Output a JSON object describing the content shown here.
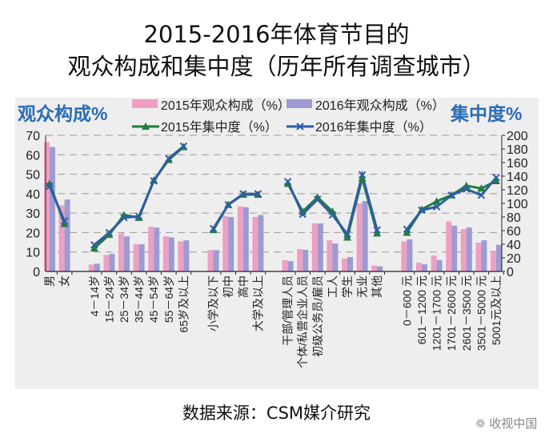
{
  "title_line1": "2015-2016年体育节目的",
  "title_line2": "观众构成和集中度（历年所有调查城市）",
  "source": "数据来源：CSM媒介研究",
  "watermark": "收视中国",
  "chart_data": {
    "type": "bar+line",
    "left_axis_title": "观众构成%",
    "right_axis_title": "集中度%",
    "ylim_left": [
      0,
      70
    ],
    "left_ticks": [
      0,
      10,
      20,
      30,
      40,
      50,
      60,
      70
    ],
    "ylim_right": [
      0,
      200
    ],
    "right_ticks": [
      0,
      20,
      40,
      60,
      80,
      100,
      120,
      140,
      160,
      180,
      200
    ],
    "grid": true,
    "legend": [
      {
        "name": "2015年观众构成（%）",
        "color": "#ee9fc4",
        "kind": "bar"
      },
      {
        "name": "2016年观众构成（%）",
        "color": "#9c9bd2",
        "kind": "bar"
      },
      {
        "name": "2015年集中度（%）",
        "color": "#1f7d3f",
        "kind": "line"
      },
      {
        "name": "2016年集中度（%）",
        "color": "#2f5da6",
        "kind": "line"
      }
    ],
    "groups": [
      {
        "categories": [
          "男",
          "女"
        ],
        "bar2015": [
          66.5,
          34
        ],
        "bar2016": [
          64,
          37
        ],
        "conc2015": [
          129,
          70
        ],
        "conc2016": [
          125,
          74
        ]
      },
      {
        "categories": [
          "4－14岁",
          "15－24岁",
          "25－34岁",
          "35－44岁",
          "45－54岁",
          "55－64岁",
          "65岁及以上"
        ],
        "bar2015": [
          3.5,
          8.5,
          19.5,
          14,
          23,
          18,
          15.5
        ],
        "bar2016": [
          4,
          9,
          18,
          14,
          22.5,
          17.5,
          16
        ],
        "conc2015": [
          34,
          54,
          83,
          79,
          134,
          164,
          183
        ],
        "conc2016": [
          39,
          57,
          79,
          81,
          133,
          166,
          184
        ]
      },
      {
        "categories": [
          "小学及以下",
          "初中",
          "高中",
          "大学及以上"
        ],
        "bar2015": [
          11,
          28.5,
          33.5,
          28
        ],
        "bar2016": [
          11,
          28,
          33,
          29
        ],
        "conc2015": [
          61,
          98,
          113,
          113
        ],
        "conc2016": [
          63,
          98,
          114,
          114
        ]
      },
      {
        "categories": [
          "干部/管理人员",
          "个体/私营企业人员",
          "初级公务员/雇员",
          "工人",
          "学生",
          "无业",
          "其他"
        ],
        "bar2015": [
          5.8,
          11.5,
          24.7,
          16,
          6.6,
          35,
          3
        ],
        "bar2016": [
          5.3,
          11.1,
          24.7,
          14.4,
          7.4,
          36.2,
          2.6
        ],
        "conc2015": [
          129,
          88,
          109,
          88,
          50,
          137,
          56
        ],
        "conc2016": [
          132,
          84,
          106,
          83,
          55,
          142,
          61
        ]
      },
      {
        "categories": [
          "0－600 元",
          "601－1200 元",
          "1201－1700 元",
          "1701－2600 元",
          "2601－3500 元",
          "3501－5000 元",
          "5001元及以上"
        ],
        "bar2015": [
          15.5,
          4.5,
          8.2,
          25.7,
          21.8,
          14.8,
          10.7
        ],
        "bar2016": [
          16.5,
          3.7,
          5.8,
          23.5,
          22.6,
          16,
          13.7
        ],
        "conc2015": [
          57,
          91,
          103,
          112,
          126,
          122,
          133
        ],
        "conc2016": [
          62,
          90,
          95,
          112,
          121,
          112,
          138
        ]
      }
    ]
  }
}
